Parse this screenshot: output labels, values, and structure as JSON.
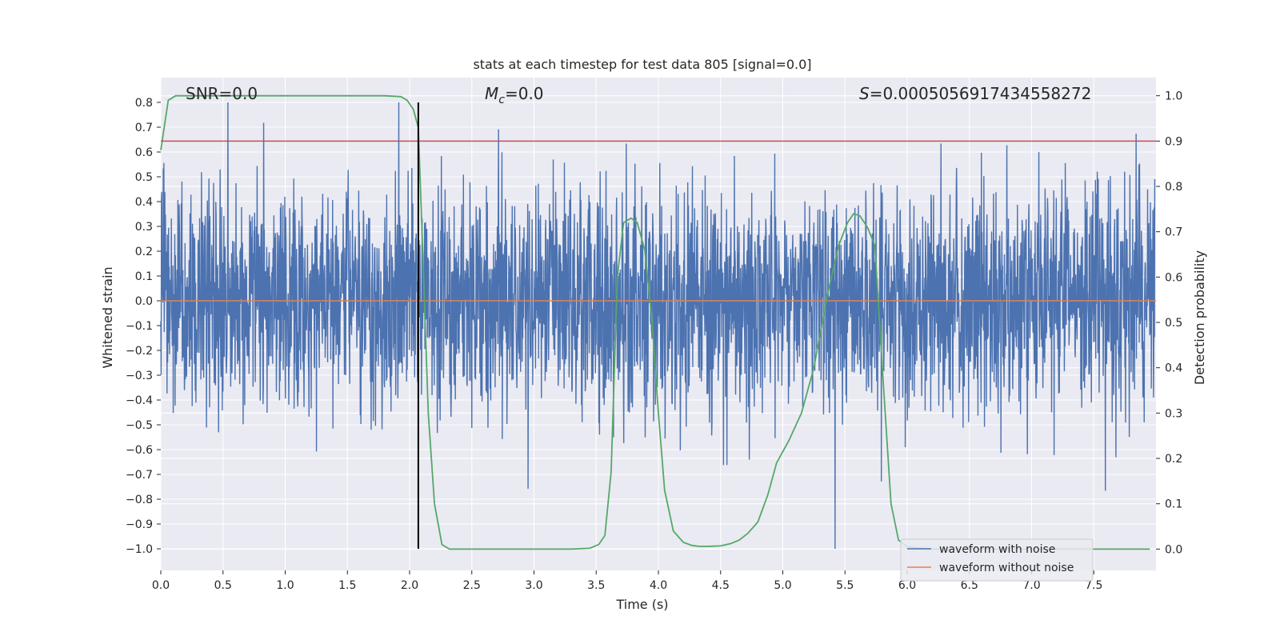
{
  "chart_data": {
    "type": "line",
    "title": "stats at each timestep for test data 805 [signal=0.0]",
    "xlabel": "Time (s)",
    "ylabel": "Whitened strain",
    "ylabel_right": "Detection probability",
    "xlim": [
      0.0,
      8.0
    ],
    "ylim": [
      -1.087,
      0.9
    ],
    "ylim_right": [
      -0.047,
      1.04
    ],
    "x_ticks": [
      0.0,
      0.5,
      1.0,
      1.5,
      2.0,
      2.5,
      3.0,
      3.5,
      4.0,
      4.5,
      5.0,
      5.5,
      6.0,
      6.5,
      7.0,
      7.5
    ],
    "x_tick_labels": [
      "0.0",
      "0.5",
      "1.0",
      "1.5",
      "2.0",
      "2.5",
      "3.0",
      "3.5",
      "4.0",
      "4.5",
      "5.0",
      "5.5",
      "6.0",
      "6.5",
      "7.0",
      "7.5"
    ],
    "y_ticks": [
      0.8,
      0.7,
      0.6,
      0.5,
      0.4,
      0.3,
      0.2,
      0.1,
      0.0,
      -0.1,
      -0.2,
      -0.3,
      -0.4,
      -0.5,
      -0.6,
      -0.7,
      -0.8,
      -0.9,
      -1.0
    ],
    "y_tick_labels": [
      "0.8",
      "0.7",
      "0.6",
      "0.5",
      "0.4",
      "0.3",
      "0.2",
      "0.1",
      "0.0",
      "−0.1",
      "−0.2",
      "−0.3",
      "−0.4",
      "−0.5",
      "−0.6",
      "−0.7",
      "−0.8",
      "−0.9",
      "−1.0"
    ],
    "y_right_ticks": [
      1.0,
      0.9,
      0.8,
      0.7,
      0.6,
      0.5,
      0.4,
      0.3,
      0.2,
      0.1,
      0.0
    ],
    "y_right_tick_labels": [
      "1.0",
      "0.9",
      "0.8",
      "0.7",
      "0.6",
      "0.5",
      "0.4",
      "0.3",
      "0.2",
      "0.1",
      "0.0"
    ],
    "grid": true,
    "annotations": [
      {
        "text": "SNR=0.0",
        "x": 0.2,
        "y": 0.83
      },
      {
        "html": "M<tspan font-style='italic'></tspan>",
        "text_parts": [
          "M",
          "c",
          "=0.0"
        ],
        "x": 2.6,
        "y": 0.83
      },
      {
        "text_parts": [
          "S",
          "=0.0005056917434558272"
        ],
        "x": 5.6,
        "y": 0.83
      }
    ],
    "annotation_snr": "SNR=0.0",
    "annotation_mc_base": "M",
    "annotation_mc_sub": "c",
    "annotation_mc_value": "=0.0",
    "annotation_s_base": "S",
    "annotation_s_value": "=0.0005056917434558272",
    "threshold_right": 0.9,
    "vline_x": 2.07,
    "vline_y": [
      -1.0,
      0.8
    ],
    "series": [
      {
        "name": "waveform with noise",
        "color": "#4c72b0",
        "kind": "noise-strain",
        "approx_envelope": [
          -1.0,
          0.8
        ],
        "typical_range": [
          -0.5,
          0.5
        ]
      },
      {
        "name": "waveform without noise",
        "color": "#dd8452",
        "kind": "flat",
        "value": 0.0
      },
      {
        "name": "detection probability",
        "color": "#55a868",
        "axis": "right",
        "x": [
          0.0,
          0.06,
          0.12,
          0.2,
          0.3,
          0.5,
          1.0,
          1.5,
          1.8,
          1.93,
          1.98,
          2.03,
          2.07,
          2.1,
          2.15,
          2.2,
          2.26,
          2.32,
          2.4,
          2.6,
          3.0,
          3.3,
          3.45,
          3.52,
          3.57,
          3.62,
          3.67,
          3.72,
          3.78,
          3.83,
          3.89,
          3.95,
          4.0,
          4.05,
          4.12,
          4.2,
          4.27,
          4.33,
          4.4,
          4.5,
          4.58,
          4.65,
          4.72,
          4.8,
          4.88,
          4.95,
          5.05,
          5.15,
          5.25,
          5.35,
          5.45,
          5.52,
          5.57,
          5.62,
          5.68,
          5.74,
          5.8,
          5.87,
          5.93,
          6.0,
          6.2,
          6.5,
          7.0,
          7.5,
          7.95
        ],
        "values": [
          0.88,
          0.99,
          1.0,
          1.0,
          1.0,
          1.0,
          1.0,
          1.0,
          1.0,
          0.998,
          0.99,
          0.97,
          0.93,
          0.7,
          0.3,
          0.1,
          0.01,
          0.0,
          0.0,
          0.0,
          0.0,
          0.0,
          0.002,
          0.01,
          0.03,
          0.17,
          0.6,
          0.72,
          0.73,
          0.72,
          0.66,
          0.5,
          0.3,
          0.13,
          0.04,
          0.015,
          0.008,
          0.006,
          0.006,
          0.007,
          0.012,
          0.02,
          0.035,
          0.06,
          0.12,
          0.19,
          0.24,
          0.3,
          0.4,
          0.55,
          0.67,
          0.72,
          0.74,
          0.735,
          0.71,
          0.67,
          0.4,
          0.1,
          0.02,
          0.005,
          0.0,
          0.0,
          0.0,
          0.0,
          0.0
        ]
      },
      {
        "name": "threshold",
        "color": "#c44e52",
        "axis": "right",
        "kind": "hline",
        "value": 0.9
      }
    ],
    "legend": {
      "placement": "lower-right",
      "entries": [
        "waveform with noise",
        "waveform without noise"
      ]
    }
  }
}
